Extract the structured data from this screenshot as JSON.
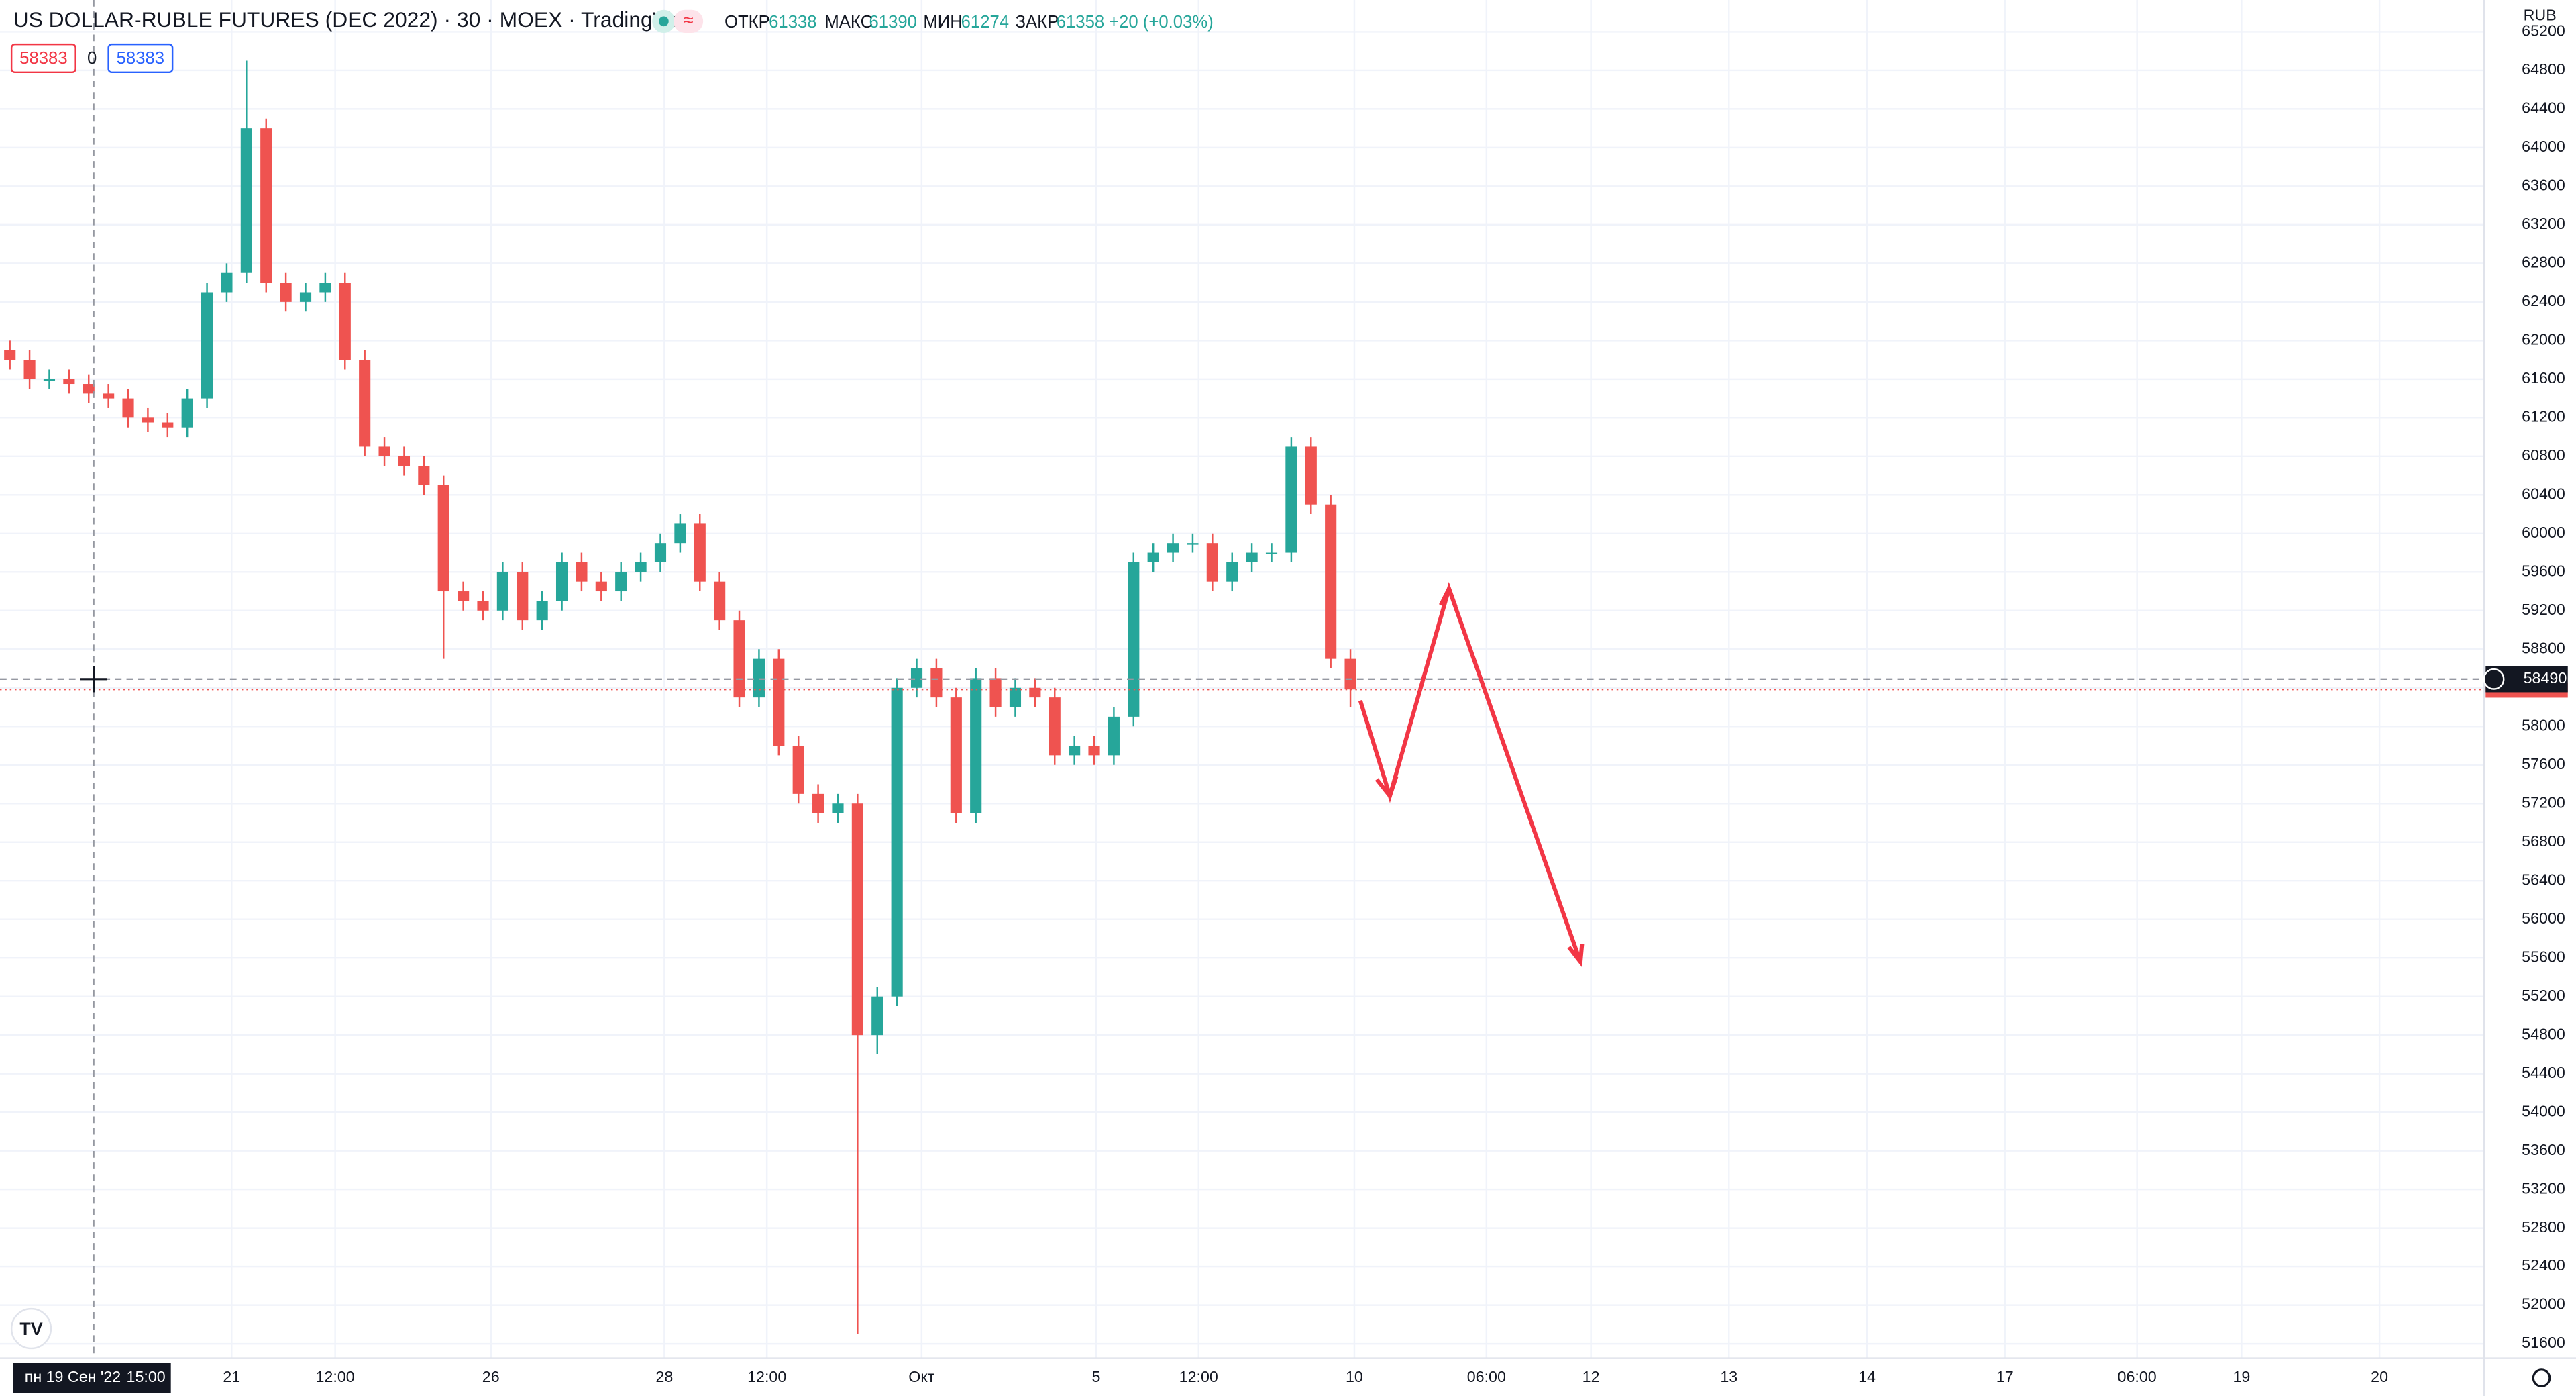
{
  "chart_data": {
    "type": "candlestick",
    "title": "US DOLLAR-RUBLE FUTURES (DEC 2022) · 30 · MOEX · TradingView",
    "ohlc_header": {
      "open_label": "ОТКР",
      "open": 61338,
      "high_label": "МАКС",
      "high": 61390,
      "low_label": "МИН",
      "low": 61274,
      "close_label": "ЗАКР",
      "close": 61358,
      "change": "+20 (+0.03%)"
    },
    "order_boxes": {
      "sell": 58383,
      "quantity": 0,
      "buy": 58383
    },
    "currency": "RUB",
    "crosshair": {
      "price": 58490,
      "date": "пн 19 Сен '22",
      "time": "15:00"
    },
    "last_price": 58383,
    "up_color": "#26a69a",
    "down_color": "#ef5350",
    "x": [
      0,
      1,
      2,
      3,
      4,
      5,
      6,
      7,
      8,
      9,
      10,
      11,
      12,
      13,
      14,
      15,
      16,
      17,
      18,
      19,
      20,
      21,
      22,
      23,
      24,
      25,
      26,
      27,
      28,
      29,
      30,
      31,
      32,
      33,
      34,
      35,
      36,
      37,
      38,
      39,
      40,
      41,
      42,
      43,
      44,
      45,
      46,
      47,
      48,
      49,
      50,
      51,
      52,
      53,
      54,
      55,
      56,
      57,
      58,
      59,
      60,
      61,
      62,
      63,
      64,
      65,
      66,
      67,
      68
    ],
    "open": [
      61900,
      61800,
      61600,
      61600,
      61550,
      61450,
      61400,
      61200,
      61150,
      61100,
      61400,
      62500,
      62700,
      64200,
      62600,
      62400,
      62500,
      62600,
      61800,
      60900,
      60800,
      60700,
      60500,
      59400,
      59300,
      59200,
      59600,
      59100,
      59300,
      59700,
      59500,
      59400,
      59600,
      59700,
      59900,
      60100,
      59500,
      59100,
      58300,
      58700,
      57800,
      57300,
      57100,
      57200,
      54800,
      55200,
      58400,
      58600,
      58300,
      57100,
      58500,
      58200,
      58400,
      58300,
      57700,
      57800,
      57700,
      58100,
      59700,
      59800,
      59900,
      59900,
      59500,
      59700,
      59800,
      59800,
      60900,
      60300,
      58700
    ],
    "high": [
      62000,
      61900,
      61700,
      61700,
      61650,
      61550,
      61500,
      61300,
      61250,
      61500,
      62600,
      62800,
      64900,
      64300,
      62700,
      62600,
      62700,
      62700,
      61900,
      61000,
      60900,
      60800,
      60600,
      59500,
      59400,
      59700,
      59700,
      59400,
      59800,
      59800,
      59600,
      59700,
      59800,
      60000,
      60200,
      60200,
      59600,
      59200,
      58800,
      58800,
      57900,
      57400,
      57300,
      57300,
      55300,
      58500,
      58700,
      58700,
      58400,
      58600,
      58600,
      58500,
      58500,
      58400,
      57900,
      57900,
      58200,
      59800,
      59900,
      60000,
      60000,
      60000,
      59800,
      59900,
      59900,
      61000,
      61000,
      60400,
      58800
    ],
    "low": [
      61700,
      61500,
      61500,
      61450,
      61350,
      61300,
      61100,
      61050,
      61000,
      61000,
      61300,
      62400,
      62600,
      62500,
      62300,
      62300,
      62400,
      61700,
      60800,
      60700,
      60600,
      60400,
      58700,
      59200,
      59100,
      59100,
      59000,
      59000,
      59200,
      59400,
      59300,
      59300,
      59500,
      59600,
      59800,
      59400,
      59000,
      58200,
      58200,
      57700,
      57200,
      57000,
      57000,
      51700,
      54600,
      55100,
      58300,
      58200,
      57000,
      57000,
      58100,
      58100,
      58200,
      57600,
      57600,
      57600,
      57600,
      58000,
      59600,
      59700,
      59800,
      59400,
      59400,
      59600,
      59700,
      59700,
      60200,
      58600,
      58200
    ],
    "close": [
      61800,
      61600,
      61600,
      61550,
      61450,
      61400,
      61200,
      61150,
      61100,
      61400,
      62500,
      62700,
      64200,
      62600,
      62400,
      62500,
      62600,
      61800,
      60900,
      60800,
      60700,
      60500,
      59400,
      59300,
      59200,
      59600,
      59100,
      59300,
      59700,
      59500,
      59400,
      59600,
      59700,
      59900,
      60100,
      59500,
      59100,
      58300,
      58700,
      57800,
      57300,
      57100,
      57200,
      54800,
      55200,
      58400,
      58600,
      58300,
      57100,
      58500,
      58200,
      58400,
      58300,
      57700,
      57800,
      57700,
      58100,
      59700,
      59800,
      59900,
      59900,
      59500,
      59700,
      59800,
      59800,
      60900,
      60300,
      58700,
      58383
    ],
    "xlim": [
      -0.5,
      125.5
    ],
    "xticks": [
      {
        "value": 11.25,
        "label": "21"
      },
      {
        "value": 16.5,
        "label": "12:00"
      },
      {
        "value": 24.4,
        "label": "26"
      },
      {
        "value": 33.2,
        "label": "28"
      },
      {
        "value": 38.4,
        "label": "12:00"
      },
      {
        "value": 46.25,
        "label": "Окт"
      },
      {
        "value": 55.1,
        "label": "5"
      },
      {
        "value": 60.3,
        "label": "12:00"
      },
      {
        "value": 68.2,
        "label": "10"
      },
      {
        "value": 74.9,
        "label": "06:00"
      },
      {
        "value": 80.2,
        "label": "12"
      },
      {
        "value": 87.2,
        "label": "13"
      },
      {
        "value": 94.2,
        "label": "14"
      },
      {
        "value": 101.2,
        "label": "17"
      },
      {
        "value": 107.9,
        "label": "06:00"
      },
      {
        "value": 113.2,
        "label": "19"
      },
      {
        "value": 120.2,
        "label": "20"
      }
    ],
    "ylim": [
      51450,
      65530
    ],
    "yticks": [
      51600,
      52000,
      52400,
      52800,
      53200,
      53600,
      54000,
      54400,
      54800,
      55200,
      55600,
      56000,
      56400,
      56800,
      57200,
      57600,
      58000,
      58400,
      58800,
      59200,
      59600,
      60000,
      60400,
      60800,
      61200,
      61600,
      62000,
      62400,
      62800,
      63200,
      63600,
      64000,
      64400,
      64800,
      65200
    ],
    "grid": true
  }
}
